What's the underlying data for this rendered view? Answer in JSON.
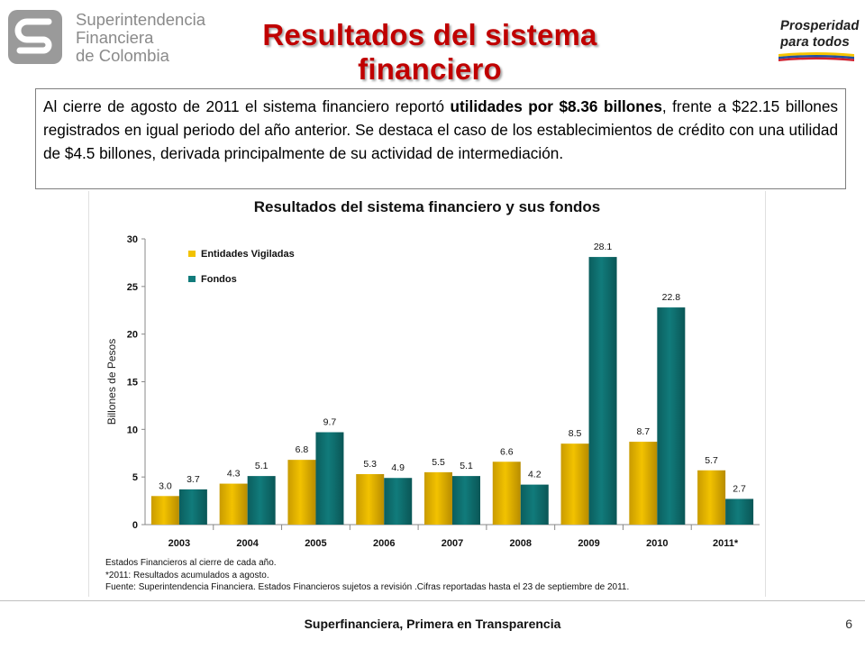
{
  "header": {
    "logo_left_lines": [
      "Superintendencia",
      "Financiera",
      "de Colombia"
    ],
    "title": "Resultados del sistema financiero",
    "logo_right_lines": [
      "Prosperidad",
      "para todos"
    ]
  },
  "summary": {
    "part1": "Al cierre de agosto de 2011 el sistema financiero reportó ",
    "bold": "utilidades por $8.36 billones",
    "part2": ", frente a  $22.15 billones registrados en igual periodo del año anterior. Se destaca el caso de los establecimientos de crédito con una utilidad de $4.5 billones, derivada principalmente de su actividad de intermediación."
  },
  "chart_data": {
    "type": "bar",
    "title": "Resultados del sistema financiero y sus fondos",
    "ylabel": "Billones de Pesos",
    "xlabel": "",
    "ylim": [
      0,
      30
    ],
    "yticks": [
      0,
      5,
      10,
      15,
      20,
      25,
      30
    ],
    "categories": [
      "2003",
      "2004",
      "2005",
      "2006",
      "2007",
      "2008",
      "2009",
      "2010",
      "2011*"
    ],
    "series": [
      {
        "name": "Entidades Vigiladas",
        "color": "#f2c200",
        "values": [
          3.0,
          4.3,
          6.8,
          5.3,
          5.5,
          6.6,
          8.5,
          8.7,
          5.7
        ],
        "labels": [
          "3.0",
          "4.3",
          "6.8",
          "5.3",
          "5.5",
          "6.6",
          "8.5",
          "8.7",
          "5.7"
        ]
      },
      {
        "name": "Fondos",
        "color": "#117b7b",
        "values": [
          3.7,
          5.1,
          9.7,
          4.9,
          5.1,
          4.2,
          28.1,
          22.8,
          2.7
        ],
        "labels": [
          "3.7",
          "5.1",
          "9.7",
          "4.9",
          "5.1",
          "4.2",
          "28.1",
          "22.8",
          "2.7"
        ]
      }
    ],
    "legend_position": "top-left",
    "grid": false,
    "notes": [
      "Estados Financieros al cierre de cada año.",
      "*2011: Resultados acumulados a agosto.",
      "Fuente: Superintendencia Financiera. Estados Financieros sujetos a revisión .Cifras reportadas hasta el 23 de septiembre de 2011."
    ]
  },
  "footer": {
    "text": "Superfinanciera, Primera en Transparencia",
    "page_number": "6"
  },
  "colors": {
    "title_red": "#c00000",
    "entidades": "#f2c200",
    "fondos": "#117b7b"
  }
}
